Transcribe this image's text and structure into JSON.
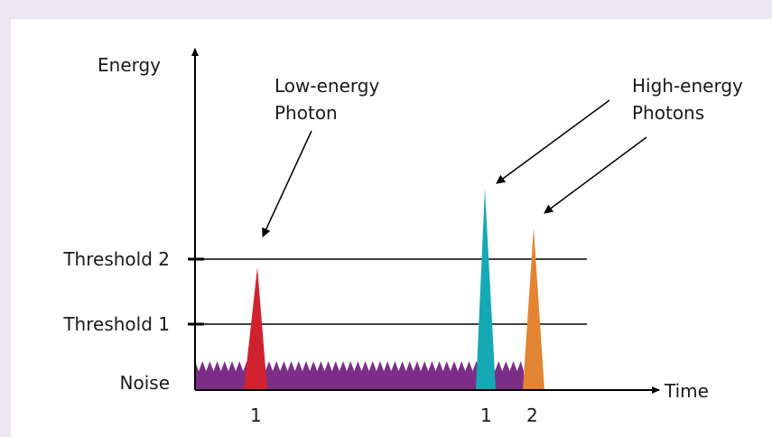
{
  "diagram": {
    "axes": {
      "y_label": "Energy",
      "x_label": "Time"
    },
    "levels": [
      {
        "id": "threshold2",
        "label": "Threshold 2"
      },
      {
        "id": "threshold1",
        "label": "Threshold 1"
      },
      {
        "id": "noise",
        "label": "Noise"
      }
    ],
    "annotations": {
      "low_energy": {
        "line1": "Low-energy",
        "line2": "Photon"
      },
      "high_energy": {
        "line1": "High-energy",
        "line2": "Photons"
      }
    },
    "photons": [
      {
        "id": "low-1",
        "label": "1",
        "color": "#d0212f",
        "type": "low-energy"
      },
      {
        "id": "high-1",
        "label": "1",
        "color": "#14a9b4",
        "type": "high-energy"
      },
      {
        "id": "high-2",
        "label": "2",
        "color": "#e28431",
        "type": "high-energy"
      }
    ],
    "colors": {
      "noise": "#7d2f88",
      "axis": "#000000",
      "background": "#ece6f3",
      "panel": "#ffffff"
    }
  }
}
